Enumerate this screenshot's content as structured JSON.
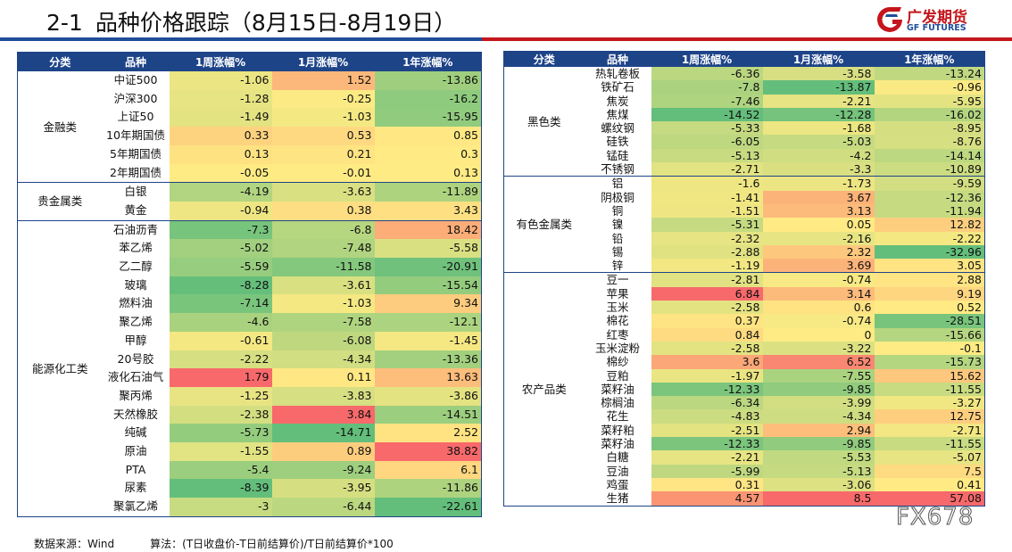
{
  "title_num": "2-1",
  "title_text": "品种价格跟踪（8月15日-8月19日）",
  "logo": {
    "name": "广发期货",
    "en": "GF FUTURES",
    "icon": "gf-logo-icon"
  },
  "headers": [
    "分类",
    "品种",
    "1周涨幅%",
    "1月涨幅%",
    "1年涨幅%"
  ],
  "left_table": [
    {
      "category": "金融类",
      "items": [
        {
          "name": "中证500",
          "w": "-1.06",
          "m": "1.52",
          "y": "-13.86"
        },
        {
          "name": "沪深300",
          "w": "-1.28",
          "m": "-0.25",
          "y": "-16.2"
        },
        {
          "name": "上证50",
          "w": "-1.49",
          "m": "-1.03",
          "y": "-15.95"
        },
        {
          "name": "10年期国债",
          "w": "0.33",
          "m": "0.53",
          "y": "0.85"
        },
        {
          "name": "5年期国债",
          "w": "0.13",
          "m": "0.21",
          "y": "0.3"
        },
        {
          "name": "2年期国债",
          "w": "-0.05",
          "m": "-0.01",
          "y": "0.13"
        }
      ]
    },
    {
      "category": "贵金属类",
      "items": [
        {
          "name": "白银",
          "w": "-4.19",
          "m": "-3.63",
          "y": "-11.89"
        },
        {
          "name": "黄金",
          "w": "-0.94",
          "m": "0.38",
          "y": "3.43"
        }
      ]
    },
    {
      "category": "能源化工类",
      "items": [
        {
          "name": "石油沥青",
          "w": "-7.3",
          "m": "-6.8",
          "y": "18.42"
        },
        {
          "name": "苯乙烯",
          "w": "-5.02",
          "m": "-7.48",
          "y": "-5.58"
        },
        {
          "name": "乙二醇",
          "w": "-5.59",
          "m": "-11.58",
          "y": "-20.91"
        },
        {
          "name": "玻璃",
          "w": "-8.28",
          "m": "-3.61",
          "y": "-15.54"
        },
        {
          "name": "燃料油",
          "w": "-7.14",
          "m": "-1.03",
          "y": "9.34"
        },
        {
          "name": "聚乙烯",
          "w": "-4.6",
          "m": "-7.58",
          "y": "-12.1"
        },
        {
          "name": "甲醇",
          "w": "-0.61",
          "m": "-6.08",
          "y": "-1.45"
        },
        {
          "name": "20号胶",
          "w": "-2.22",
          "m": "-4.34",
          "y": "-13.36"
        },
        {
          "name": "液化石油气",
          "w": "1.79",
          "m": "0.11",
          "y": "13.63"
        },
        {
          "name": "聚丙烯",
          "w": "-1.25",
          "m": "-3.83",
          "y": "-3.86"
        },
        {
          "name": "天然橡胶",
          "w": "-2.38",
          "m": "3.84",
          "y": "-14.51"
        },
        {
          "name": "纯碱",
          "w": "-5.73",
          "m": "-14.71",
          "y": "2.52"
        },
        {
          "name": "原油",
          "w": "-1.55",
          "m": "0.89",
          "y": "38.82"
        },
        {
          "name": "PTA",
          "w": "-5.4",
          "m": "-9.24",
          "y": "6.1"
        },
        {
          "name": "尿素",
          "w": "-8.39",
          "m": "-3.95",
          "y": "-11.86"
        },
        {
          "name": "聚氯乙烯",
          "w": "-3",
          "m": "-6.44",
          "y": "-22.61"
        }
      ]
    }
  ],
  "right_table": [
    {
      "category": "黑色类",
      "items": [
        {
          "name": "热轧卷板",
          "w": "-6.36",
          "m": "-3.58",
          "y": "-13.24"
        },
        {
          "name": "铁矿石",
          "w": "-7.8",
          "m": "-13.87",
          "y": "-0.96"
        },
        {
          "name": "焦炭",
          "w": "-7.46",
          "m": "-2.21",
          "y": "-5.95"
        },
        {
          "name": "焦煤",
          "w": "-14.52",
          "m": "-12.28",
          "y": "-16.02"
        },
        {
          "name": "螺纹钢",
          "w": "-5.33",
          "m": "-1.68",
          "y": "-8.95"
        },
        {
          "name": "硅铁",
          "w": "-6.05",
          "m": "-5.03",
          "y": "-8.76"
        },
        {
          "name": "锰硅",
          "w": "-5.13",
          "m": "-4.2",
          "y": "-14.14"
        },
        {
          "name": "不锈钢",
          "w": "-2.71",
          "m": "-3.3",
          "y": "-10.89"
        }
      ]
    },
    {
      "category": "有色金属类",
      "items": [
        {
          "name": "铝",
          "w": "-1.6",
          "m": "-1.73",
          "y": "-9.59"
        },
        {
          "name": "阴极铜",
          "w": "-1.41",
          "m": "3.67",
          "y": "-12.36"
        },
        {
          "name": "铜",
          "w": "-1.51",
          "m": "3.13",
          "y": "-11.94"
        },
        {
          "name": "镍",
          "w": "-5.31",
          "m": "0.05",
          "y": "12.82"
        },
        {
          "name": "铅",
          "w": "-2.32",
          "m": "-2.16",
          "y": "-2.22"
        },
        {
          "name": "锡",
          "w": "-2.88",
          "m": "2.32",
          "y": "-32.96"
        },
        {
          "name": "锌",
          "w": "-1.19",
          "m": "3.69",
          "y": "3.05"
        }
      ]
    },
    {
      "category": "农产品类",
      "items": [
        {
          "name": "豆一",
          "w": "-2.81",
          "m": "-0.74",
          "y": "2.88"
        },
        {
          "name": "苹果",
          "w": "6.84",
          "m": "3.14",
          "y": "9.19"
        },
        {
          "name": "玉米",
          "w": "-2.58",
          "m": "0.6",
          "y": "0.52"
        },
        {
          "name": "棉花",
          "w": "0.37",
          "m": "-0.74",
          "y": "-28.51"
        },
        {
          "name": "红枣",
          "w": "0.84",
          "m": "0",
          "y": "-15.66"
        },
        {
          "name": "玉米淀粉",
          "w": "-2.58",
          "m": "-3.22",
          "y": "-0.1"
        },
        {
          "name": "棉纱",
          "w": "3.6",
          "m": "6.52",
          "y": "-15.73"
        },
        {
          "name": "豆粕",
          "w": "-1.97",
          "m": "-7.55",
          "y": "15.62"
        },
        {
          "name": "菜籽油",
          "w": "-12.33",
          "m": "-9.85",
          "y": "-11.55"
        },
        {
          "name": "棕榈油",
          "w": "-6.34",
          "m": "-3.99",
          "y": "-3.27"
        },
        {
          "name": "花生",
          "w": "-4.83",
          "m": "-4.34",
          "y": "12.75"
        },
        {
          "name": "菜籽粕",
          "w": "-2.51",
          "m": "2.94",
          "y": "-2.71"
        },
        {
          "name": "菜籽油",
          "w": "-12.33",
          "m": "-9.85",
          "y": "-11.55"
        },
        {
          "name": "白糖",
          "w": "-2.21",
          "m": "-5.53",
          "y": "-5.07"
        },
        {
          "name": "豆油",
          "w": "-5.99",
          "m": "-5.13",
          "y": "7.5"
        },
        {
          "name": "鸡蛋",
          "w": "0.31",
          "m": "-3.06",
          "y": "0.41"
        },
        {
          "name": "生猪",
          "w": "4.57",
          "m": "8.5",
          "y": "57.08"
        }
      ]
    }
  ],
  "footer": {
    "source": "数据来源：Wind",
    "method": "算法：(T日收盘价-T日前结算价)/T日前结算价*100"
  },
  "watermark": "FX678"
}
